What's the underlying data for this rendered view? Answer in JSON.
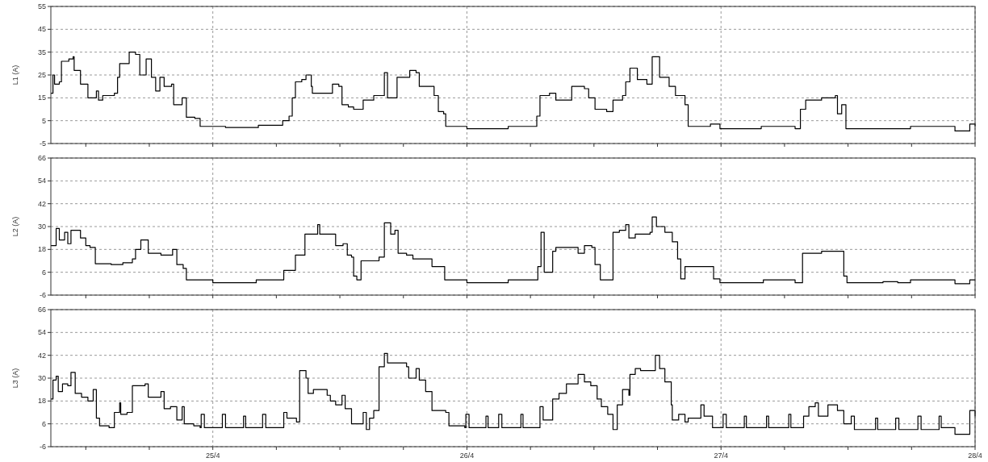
{
  "chart_data": [
    {
      "type": "step",
      "ylabel": "L1 (A)",
      "xlim": [
        "--04-24T08:42",
        "--04-28"
      ],
      "ylim": [
        -5,
        55
      ],
      "yticks": [
        -5,
        5,
        15,
        25,
        35,
        45,
        55
      ],
      "xticks": [
        {
          "value": "--04-24T12:00",
          "label": null
        },
        {
          "value": "--04-24T18:00",
          "label": null
        },
        "--04-25",
        {
          "value": "--04-25T06:00",
          "label": null
        },
        {
          "value": "--04-25T12:00",
          "label": null
        },
        {
          "value": "--04-25T18:00",
          "label": null
        },
        "--04-26",
        {
          "value": "--04-26T06:00",
          "label": null
        },
        {
          "value": "--04-26T12:00",
          "label": null
        },
        {
          "value": "--04-26T18:00",
          "label": null
        },
        "--04-27",
        {
          "value": "--04-27T06:00",
          "label": null
        },
        {
          "value": "--04-27T12:00",
          "label": null
        },
        {
          "value": "--04-27T18:00",
          "label": null
        },
        "--04-28"
      ],
      "tick_labels": "y",
      "grid": true,
      "line_style": "solid",
      "marker": "none",
      "series": [
        {
          "color": "#000000",
          "x": [
            "--04-24T08:42",
            "--04-24T08:54",
            "--04-24T09:03",
            "--04-24T09:30",
            "--04-24T09:42",
            "--04-24T10:24",
            "--04-24T10:48",
            "--04-24T10:54",
            "--04-24T11:30",
            "--04-24T12:12",
            "--04-24T13:00",
            "--04-24T13:12",
            "--04-24T13:36",
            "--04-24T14:42",
            "--04-24T15:00",
            "--04-24T15:12",
            "--04-24T16:06",
            "--04-24T16:42",
            "--04-24T17:06",
            "--04-24T17:42",
            "--04-24T18:12",
            "--04-24T18:36",
            "--04-24T19:00",
            "--04-24T19:24",
            "--04-24T20:06",
            "--04-24T20:18",
            "--04-24T21:06",
            "--04-24T21:30",
            "--04-24T22:18",
            "--04-24T22:48",
            "--04-25T00:00",
            "--04-25T01:12",
            "--04-25T03:42",
            "--04-25T04:18",
            "--04-25T06:24",
            "--04-25T06:36",
            "--04-25T07:12",
            "--04-25T07:30",
            "--04-25T07:48",
            "--04-25T08:24",
            "--04-25T08:48",
            "--04-25T09:18",
            "--04-25T09:24",
            "--04-25T10:24",
            "--04-25T11:18",
            "--04-25T11:54",
            "--04-25T12:12",
            "--04-25T12:48",
            "--04-25T13:18",
            "--04-25T14:12",
            "--04-25T15:12",
            "--04-25T16:12",
            "--04-25T16:30",
            "--04-25T17:24",
            "--04-25T18:36",
            "--04-25T19:12",
            "--04-25T19:30",
            "--04-25T20:54",
            "--04-25T21:18",
            "--04-25T21:48",
            "--04-25T22:00",
            "--04-26T00:00",
            "--04-26T03:54",
            "--04-26T06:24",
            "--04-26T06:36",
            "--04-26T06:54",
            "--04-26T07:48",
            "--04-26T08:24",
            "--04-26T09:54",
            "--04-26T11:06",
            "--04-26T11:30",
            "--04-26T12:06",
            "--04-26T13:12",
            "--04-26T13:48",
            "--04-26T14:42",
            "--04-26T15:00",
            "--04-26T15:24",
            "--04-26T16:06",
            "--04-26T17:00",
            "--04-26T17:30",
            "--04-26T18:12",
            "--04-26T19:06",
            "--04-26T19:42",
            "--04-26T20:36",
            "--04-26T20:54",
            "--04-26T23:00",
            "--04-26T23:54",
            "--04-27T03:48",
            "--04-27T06:48",
            "--04-27T07:00",
            "--04-27T07:30",
            "--04-27T08:00",
            "--04-27T09:30",
            "--04-27T10:48",
            "--04-27T11:00",
            "--04-27T11:24",
            "--04-27T11:48",
            "--04-27T17:54",
            "--04-27T22:06",
            "--04-27T23:30",
            "--04-28T00:00"
          ],
          "values": [
            17,
            25,
            21,
            22,
            31,
            32,
            33,
            27,
            21,
            15,
            18,
            14,
            16,
            17,
            24,
            30,
            35,
            34,
            25,
            32,
            24,
            18,
            24,
            20,
            21,
            12,
            15,
            6.5,
            6,
            2.5,
            2.5,
            2,
            2,
            3,
            3,
            5,
            7,
            15,
            22,
            23,
            25,
            20,
            17,
            17,
            21,
            20,
            12,
            11,
            10,
            14,
            16,
            26,
            15,
            24,
            27,
            26,
            20,
            16,
            9,
            8,
            2.5,
            1.5,
            2.5,
            2.5,
            7,
            16,
            17,
            14,
            20,
            19,
            15,
            10,
            9,
            14,
            16,
            22,
            28,
            23,
            21,
            33,
            24,
            20,
            16,
            12,
            2.5,
            3.5,
            1.5,
            2.5,
            2.5,
            1.5,
            10,
            14,
            15,
            16,
            8,
            12,
            1.5,
            2.5,
            0.5,
            3.5,
            2.5
          ]
        }
      ]
    },
    {
      "type": "step",
      "ylabel": "L2 (A)",
      "xlim": [
        "--04-24T08:42",
        "--04-28"
      ],
      "ylim": [
        -6,
        66
      ],
      "yticks": [
        -6,
        6,
        18,
        30,
        42,
        54,
        66
      ],
      "xticks": [
        {
          "value": "--04-24T12:00",
          "label": null
        },
        {
          "value": "--04-24T18:00",
          "label": null
        },
        "--04-25",
        {
          "value": "--04-25T06:00",
          "label": null
        },
        {
          "value": "--04-25T12:00",
          "label": null
        },
        {
          "value": "--04-25T18:00",
          "label": null
        },
        "--04-26",
        {
          "value": "--04-26T06:00",
          "label": null
        },
        {
          "value": "--04-26T12:00",
          "label": null
        },
        {
          "value": "--04-26T18:00",
          "label": null
        },
        "--04-27",
        {
          "value": "--04-27T06:00",
          "label": null
        },
        {
          "value": "--04-27T12:00",
          "label": null
        },
        {
          "value": "--04-27T18:00",
          "label": null
        },
        "--04-28"
      ],
      "tick_labels": "y",
      "grid": true,
      "line_style": "solid",
      "marker": "none",
      "series": [
        {
          "color": "#000000",
          "x": [
            "--04-24T08:42",
            "--04-24T09:12",
            "--04-24T09:30",
            "--04-24T10:00",
            "--04-24T10:18",
            "--04-24T10:36",
            "--04-24T11:12",
            "--04-24T11:30",
            "--04-24T12:00",
            "--04-24T12:24",
            "--04-24T12:54",
            "--04-24T14:24",
            "--04-24T15:30",
            "--04-24T16:24",
            "--04-24T16:42",
            "--04-24T17:12",
            "--04-24T17:54",
            "--04-24T19:06",
            "--04-24T20:12",
            "--04-24T20:36",
            "--04-24T21:12",
            "--04-24T21:30",
            "--04-25T00:00",
            "--04-25T04:06",
            "--04-25T06:36",
            "--04-25T06:42",
            "--04-25T07:18",
            "--04-25T07:48",
            "--04-25T08:42",
            "--04-25T09:54",
            "--04-25T10:06",
            "--04-25T11:18",
            "--04-25T11:36",
            "--04-25T12:18",
            "--04-25T12:42",
            "--04-25T13:06",
            "--04-25T13:18",
            "--04-25T13:36",
            "--04-25T14:00",
            "--04-25T15:42",
            "--04-25T16:12",
            "--04-25T16:48",
            "--04-25T17:12",
            "--04-25T17:30",
            "--04-25T18:18",
            "--04-25T18:54",
            "--04-25T20:42",
            "--04-25T21:54",
            "--04-26T00:00",
            "--04-26T03:54",
            "--04-26T06:24",
            "--04-26T06:42",
            "--04-26T07:00",
            "--04-26T07:18",
            "--04-26T07:48",
            "--04-26T08:06",
            "--04-26T08:24",
            "--04-26T09:24",
            "--04-26T10:30",
            "--04-26T11:06",
            "--04-26T11:48",
            "--04-26T12:06",
            "--04-26T12:36",
            "--04-26T13:30",
            "--04-26T13:48",
            "--04-26T14:24",
            "--04-26T15:00",
            "--04-26T15:18",
            "--04-26T15:54",
            "--04-26T17:18",
            "--04-26T17:30",
            "--04-26T17:54",
            "--04-26T18:42",
            "--04-26T19:24",
            "--04-26T19:42",
            "--04-26T19:54",
            "--04-26T20:12",
            "--04-26T20:36",
            "--04-26T23:00",
            "--04-26T23:18",
            "--04-26T23:54",
            "--04-27T04:00",
            "--04-27T06:48",
            "--04-27T07:00",
            "--04-27T07:42",
            "--04-27T09:30",
            "--04-27T11:18",
            "--04-27T11:36",
            "--04-27T11:54",
            "--04-27T15:18",
            "--04-27T16:42",
            "--04-27T17:54",
            "--04-27T22:06",
            "--04-27T23:30",
            "--04-28T00:00"
          ],
          "values": [
            20,
            29,
            23,
            27,
            21,
            28,
            28,
            24,
            20,
            19,
            10.5,
            10,
            11,
            13,
            18,
            23,
            16,
            15,
            18,
            10,
            8,
            2,
            0.5,
            2,
            2,
            7,
            7,
            15,
            26,
            31,
            26,
            26,
            20,
            21,
            15,
            14,
            4,
            2,
            12,
            14,
            32,
            26,
            28,
            16,
            15,
            13,
            9,
            2,
            0.5,
            2,
            2,
            9,
            27,
            6,
            6,
            17,
            19,
            19,
            16,
            20,
            19,
            10,
            2,
            2,
            27,
            28,
            31,
            24,
            26,
            27,
            35,
            30,
            27,
            22,
            22,
            13,
            2.5,
            9,
            9,
            2.5,
            0.5,
            2,
            2,
            0.5,
            16,
            17,
            17,
            4,
            0.5,
            1,
            0.5,
            2,
            0,
            2,
            2
          ]
        }
      ]
    },
    {
      "type": "step",
      "ylabel": "L3 (A)",
      "xlim": [
        "--04-24T08:42",
        "--04-28"
      ],
      "ylim": [
        -6,
        66
      ],
      "yticks": [
        -6,
        6,
        18,
        30,
        42,
        54,
        66
      ],
      "xticks": [
        {
          "value": "--04-24T12:00",
          "label": null
        },
        {
          "value": "--04-24T18:00",
          "label": null
        },
        {
          "value": "--04-25",
          "label": "25/4"
        },
        {
          "value": "--04-25T06:00",
          "label": null
        },
        {
          "value": "--04-25T12:00",
          "label": null
        },
        {
          "value": "--04-25T18:00",
          "label": null
        },
        {
          "value": "--04-26",
          "label": "26/4"
        },
        {
          "value": "--04-26T06:00",
          "label": null
        },
        {
          "value": "--04-26T12:00",
          "label": null
        },
        {
          "value": "--04-26T18:00",
          "label": null
        },
        {
          "value": "--04-27",
          "label": "27/4"
        },
        {
          "value": "--04-27T06:00",
          "label": null
        },
        {
          "value": "--04-27T12:00",
          "label": null
        },
        {
          "value": "--04-27T18:00",
          "label": null
        },
        {
          "value": "--04-28",
          "label": "28/4"
        }
      ],
      "grid": true,
      "line_style": "solid",
      "marker": "none",
      "series": [
        {
          "color": "#000000",
          "x": [
            "--04-24T08:42",
            "--04-24T08:54",
            "--04-24T09:12",
            "--04-24T09:24",
            "--04-24T09:48",
            "--04-24T10:18",
            "--04-24T10:36",
            "--04-24T11:00",
            "--04-24T11:36",
            "--04-24T12:12",
            "--04-24T12:42",
            "--04-24T13:00",
            "--04-24T13:18",
            "--04-24T14:12",
            "--04-24T14:42",
            "--04-24T15:12",
            "--04-24T15:18",
            "--04-24T15:54",
            "--04-24T16:24",
            "--04-24T17:36",
            "--04-24T17:54",
            "--04-24T18:30",
            "--04-24T19:06",
            "--04-24T19:24",
            "--04-24T20:00",
            "--04-24T20:36",
            "--04-24T21:06",
            "--04-24T21:18",
            "--04-24T22:12",
            "--04-24T22:48",
            "--04-24T22:54",
            "--04-24T23:12",
            "--04-25T00:54",
            "--04-25T01:12",
            "--04-25T02:54",
            "--04-25T03:06",
            "--04-25T04:42",
            "--04-25T05:00",
            "--04-25T06:42",
            "--04-25T07:00",
            "--04-25T07:54",
            "--04-25T08:12",
            "--04-25T08:48",
            "--04-25T09:00",
            "--04-25T09:30",
            "--04-25T10:48",
            "--04-25T11:06",
            "--04-25T11:36",
            "--04-25T12:12",
            "--04-25T12:30",
            "--04-25T13:06",
            "--04-25T14:00",
            "--04-25T14:12",
            "--04-25T14:30",
            "--04-25T14:48",
            "--04-25T15:12",
            "--04-25T15:42",
            "--04-25T16:12",
            "--04-25T16:30",
            "--04-25T17:06",
            "--04-25T18:18",
            "--04-25T18:30",
            "--04-25T19:12",
            "--04-25T19:30",
            "--04-25T20:06",
            "--04-25T20:42",
            "--04-25T22:00",
            "--04-25T22:18",
            "--04-25T23:48",
            "--04-25T23:54",
            "--04-26T00:12",
            "--04-26T01:48",
            "--04-26T02:00",
            "--04-26T03:00",
            "--04-26T03:18",
            "--04-26T05:06",
            "--04-26T05:18",
            "--04-26T06:54",
            "--04-26T07:12",
            "--04-26T08:06",
            "--04-26T08:42",
            "--04-26T09:24",
            "--04-26T10:30",
            "--04-26T11:06",
            "--04-26T11:42",
            "--04-26T12:18",
            "--04-26T12:42",
            "--04-26T13:18",
            "--04-26T13:48",
            "--04-26T14:12",
            "--04-26T14:42",
            "--04-26T15:18",
            "--04-26T15:24",
            "--04-26T15:54",
            "--04-26T16:24",
            "--04-26T17:18",
            "--04-26T17:48",
            "--04-26T18:12",
            "--04-26T18:42",
            "--04-26T19:18",
            "--04-26T19:24",
            "--04-26T20:00",
            "--04-26T20:36",
            "--04-26T20:54",
            "--04-26T22:06",
            "--04-26T22:24",
            "--04-26T23:12",
            "--04-27T00:12",
            "--04-27T00:30",
            "--04-27T02:12",
            "--04-27T02:24",
            "--04-27T04:18",
            "--04-27T04:30",
            "--04-27T06:24",
            "--04-27T06:36",
            "--04-27T07:48",
            "--04-27T08:18",
            "--04-27T08:54",
            "--04-27T09:12",
            "--04-27T10:06",
            "--04-27T11:00",
            "--04-27T11:36",
            "--04-27T12:18",
            "--04-27T12:36",
            "--04-27T14:36",
            "--04-27T14:48",
            "--04-27T16:30",
            "--04-27T16:48",
            "--04-27T18:36",
            "--04-27T18:54",
            "--04-27T20:36",
            "--04-27T20:48",
            "--04-27T22:06",
            "--04-27T23:30",
            "--04-28T00:00"
          ],
          "values": [
            19,
            29,
            31,
            23,
            27,
            26,
            33,
            22,
            20,
            18,
            24,
            9,
            5,
            4,
            12,
            17,
            11,
            12,
            26,
            27,
            20,
            20,
            23,
            14,
            15,
            8,
            15,
            6,
            5,
            4,
            11,
            4,
            11,
            4,
            10,
            4,
            11,
            4,
            12,
            9,
            7,
            34,
            30,
            22,
            24,
            21,
            18,
            16,
            21,
            14,
            6,
            6,
            12,
            3,
            9,
            13,
            36,
            43,
            38,
            38,
            36,
            30,
            35,
            29,
            23,
            13,
            12,
            5,
            4,
            11,
            4,
            10,
            4,
            11,
            4,
            11,
            4,
            15,
            8,
            19,
            22,
            27,
            32,
            28,
            26,
            19,
            15,
            11,
            3,
            16,
            24,
            21,
            32,
            35,
            34,
            34,
            42,
            35,
            28,
            16,
            8,
            11,
            7,
            9,
            16,
            10,
            4,
            11,
            4,
            10,
            4,
            10,
            4,
            11,
            4,
            10,
            15,
            17,
            10,
            16,
            13,
            6,
            10,
            3,
            9,
            3,
            9,
            3,
            10,
            3,
            10,
            4,
            0.5,
            13,
            10
          ]
        }
      ]
    }
  ]
}
